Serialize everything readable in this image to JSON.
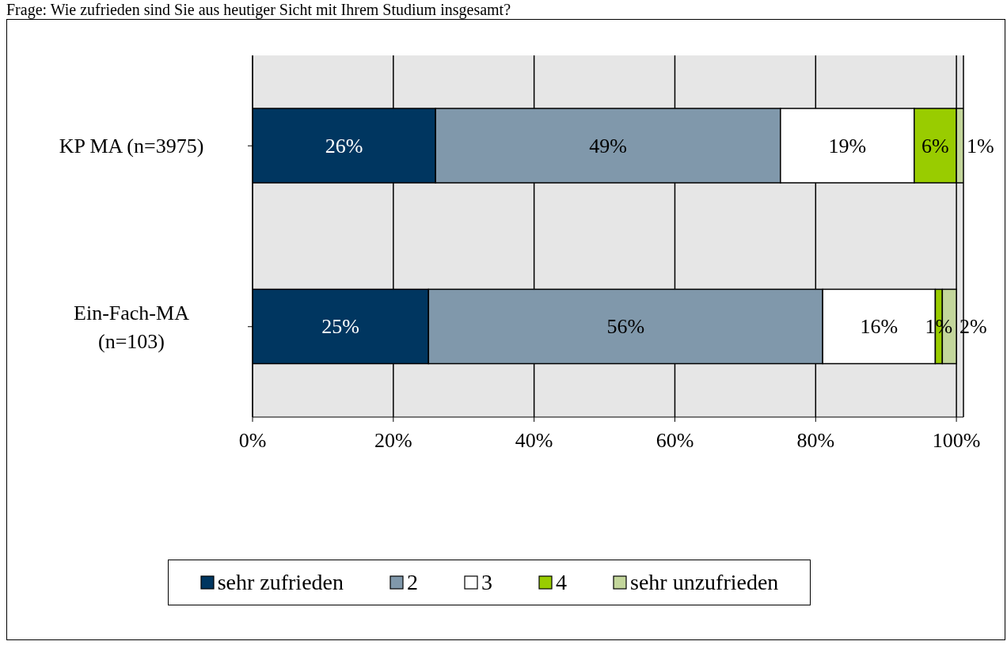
{
  "chart_data": {
    "type": "bar",
    "orientation": "horizontal",
    "stacked": true,
    "title": "Frage: Wie zufrieden sind Sie aus heutiger Sicht mit Ihrem Studium insgesamt?",
    "categories": [
      "KP MA (n=3975)",
      "Ein-Fach-MA (n=103)"
    ],
    "series": [
      {
        "name": "sehr zufrieden",
        "color": "#003660",
        "values": [
          26,
          25
        ],
        "value_labels": [
          "26%",
          "25%"
        ]
      },
      {
        "name": "2",
        "color": "#8098ab",
        "values": [
          49,
          56
        ],
        "value_labels": [
          "49%",
          "56%"
        ]
      },
      {
        "name": "3",
        "color": "#ffffff",
        "values": [
          19,
          16
        ],
        "value_labels": [
          "19%",
          "16%"
        ]
      },
      {
        "name": "4",
        "color": "#99cc00",
        "values": [
          6,
          1
        ],
        "value_labels": [
          "6%",
          "1%"
        ]
      },
      {
        "name": "sehr unzufrieden",
        "color": "#c3d69b",
        "values": [
          1,
          2
        ],
        "value_labels": [
          "1%",
          "2%"
        ]
      }
    ],
    "xlim": [
      0,
      101
    ],
    "xticks": [
      {
        "value": 0,
        "label": "0%"
      },
      {
        "value": 20,
        "label": "20%"
      },
      {
        "value": 40,
        "label": "40%"
      },
      {
        "value": 60,
        "label": "60%"
      },
      {
        "value": 80,
        "label": "80%"
      },
      {
        "value": 100,
        "label": "100%"
      }
    ],
    "grid": "x",
    "legend": "bottom"
  }
}
